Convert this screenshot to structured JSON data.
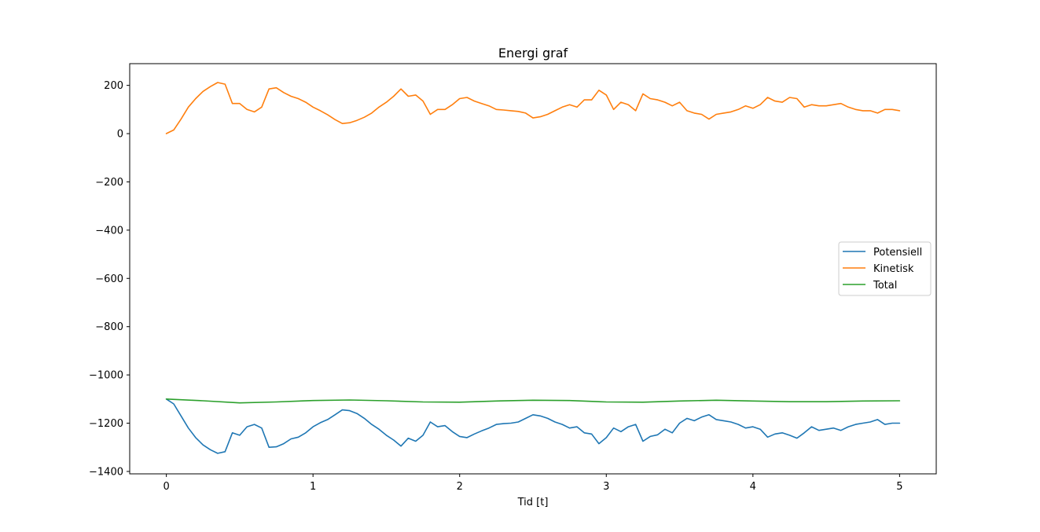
{
  "chart_data": {
    "type": "line",
    "title": "Energi graf",
    "xlabel": "Tid [t]",
    "ylabel": "",
    "xlim": [
      -0.25,
      5.25
    ],
    "ylim": [
      -1410,
      290
    ],
    "xticks": [
      0,
      1,
      2,
      3,
      4,
      5
    ],
    "xtick_labels": [
      "0",
      "1",
      "2",
      "3",
      "4",
      "5"
    ],
    "yticks": [
      -1400,
      -1200,
      -1000,
      -800,
      -600,
      -400,
      -200,
      0,
      200
    ],
    "ytick_labels": [
      "−1400",
      "−1200",
      "−1000",
      "−800",
      "−600",
      "−400",
      "−200",
      "0",
      "200"
    ],
    "grid": false,
    "legend_position": "center-right",
    "series": [
      {
        "name": "Potensiell",
        "color": "#1f77b4",
        "x": [
          0,
          0.05,
          0.1,
          0.15,
          0.2,
          0.25,
          0.3,
          0.35,
          0.4,
          0.45,
          0.5,
          0.55,
          0.6,
          0.65,
          0.7,
          0.75,
          0.8,
          0.85,
          0.9,
          0.95,
          1.0,
          1.05,
          1.1,
          1.15,
          1.2,
          1.25,
          1.3,
          1.35,
          1.4,
          1.45,
          1.5,
          1.55,
          1.6,
          1.65,
          1.7,
          1.75,
          1.8,
          1.85,
          1.9,
          1.95,
          2.0,
          2.05,
          2.1,
          2.15,
          2.2,
          2.25,
          2.3,
          2.35,
          2.4,
          2.45,
          2.5,
          2.55,
          2.6,
          2.65,
          2.7,
          2.75,
          2.8,
          2.85,
          2.9,
          2.95,
          3.0,
          3.05,
          3.1,
          3.15,
          3.2,
          3.25,
          3.3,
          3.35,
          3.4,
          3.45,
          3.5,
          3.55,
          3.6,
          3.65,
          3.7,
          3.75,
          3.8,
          3.85,
          3.9,
          3.95,
          4.0,
          4.05,
          4.1,
          4.15,
          4.2,
          4.25,
          4.3,
          4.35,
          4.4,
          4.45,
          4.5,
          4.55,
          4.6,
          4.65,
          4.7,
          4.75,
          4.8,
          4.85,
          4.9,
          4.95,
          5.0
        ],
        "values": [
          -1100,
          -1120,
          -1170,
          -1220,
          -1260,
          -1290,
          -1310,
          -1325,
          -1318,
          -1240,
          -1250,
          -1215,
          -1205,
          -1220,
          -1300,
          -1298,
          -1285,
          -1265,
          -1258,
          -1240,
          -1215,
          -1198,
          -1185,
          -1165,
          -1145,
          -1148,
          -1160,
          -1180,
          -1205,
          -1225,
          -1250,
          -1270,
          -1295,
          -1262,
          -1275,
          -1250,
          -1195,
          -1215,
          -1210,
          -1235,
          -1255,
          -1260,
          -1245,
          -1232,
          -1220,
          -1205,
          -1202,
          -1200,
          -1195,
          -1180,
          -1165,
          -1170,
          -1180,
          -1195,
          -1205,
          -1220,
          -1215,
          -1240,
          -1245,
          -1285,
          -1260,
          -1220,
          -1235,
          -1215,
          -1205,
          -1275,
          -1255,
          -1248,
          -1225,
          -1240,
          -1200,
          -1180,
          -1190,
          -1175,
          -1165,
          -1185,
          -1190,
          -1195,
          -1205,
          -1220,
          -1215,
          -1225,
          -1258,
          -1245,
          -1240,
          -1250,
          -1262,
          -1240,
          -1215,
          -1230,
          -1225,
          -1220,
          -1230,
          -1215,
          -1205,
          -1200,
          -1195,
          -1185,
          -1205,
          -1200,
          -1200
        ]
      },
      {
        "name": "Kinetisk",
        "color": "#ff7f0e",
        "x": [
          0,
          0.05,
          0.1,
          0.15,
          0.2,
          0.25,
          0.3,
          0.35,
          0.4,
          0.45,
          0.5,
          0.55,
          0.6,
          0.65,
          0.7,
          0.75,
          0.8,
          0.85,
          0.9,
          0.95,
          1.0,
          1.05,
          1.1,
          1.15,
          1.2,
          1.25,
          1.3,
          1.35,
          1.4,
          1.45,
          1.5,
          1.55,
          1.6,
          1.65,
          1.7,
          1.75,
          1.8,
          1.85,
          1.9,
          1.95,
          2.0,
          2.05,
          2.1,
          2.15,
          2.2,
          2.25,
          2.3,
          2.35,
          2.4,
          2.45,
          2.5,
          2.55,
          2.6,
          2.65,
          2.7,
          2.75,
          2.8,
          2.85,
          2.9,
          2.95,
          3.0,
          3.05,
          3.1,
          3.15,
          3.2,
          3.25,
          3.3,
          3.35,
          3.4,
          3.45,
          3.5,
          3.55,
          3.6,
          3.65,
          3.7,
          3.75,
          3.8,
          3.85,
          3.9,
          3.95,
          4.0,
          4.05,
          4.1,
          4.15,
          4.2,
          4.25,
          4.3,
          4.35,
          4.4,
          4.45,
          4.5,
          4.55,
          4.6,
          4.65,
          4.7,
          4.75,
          4.8,
          4.85,
          4.9,
          4.95,
          5.0
        ],
        "values": [
          0,
          15,
          60,
          110,
          145,
          175,
          195,
          212,
          205,
          125,
          125,
          100,
          90,
          110,
          185,
          190,
          170,
          155,
          145,
          130,
          110,
          95,
          78,
          58,
          42,
          45,
          55,
          68,
          85,
          110,
          130,
          155,
          185,
          155,
          160,
          135,
          80,
          100,
          100,
          120,
          145,
          150,
          135,
          125,
          115,
          100,
          98,
          95,
          92,
          85,
          65,
          70,
          80,
          95,
          110,
          120,
          110,
          140,
          140,
          180,
          160,
          100,
          130,
          120,
          95,
          165,
          145,
          140,
          130,
          115,
          130,
          95,
          85,
          80,
          60,
          80,
          85,
          90,
          100,
          115,
          105,
          120,
          150,
          135,
          130,
          150,
          145,
          110,
          120,
          115,
          115,
          120,
          125,
          110,
          100,
          95,
          95,
          85,
          100,
          100,
          95
        ]
      },
      {
        "name": "Total",
        "color": "#2ca02c",
        "x": [
          0,
          0.25,
          0.5,
          0.75,
          1.0,
          1.25,
          1.5,
          1.75,
          2.0,
          2.25,
          2.5,
          2.75,
          3.0,
          3.25,
          3.5,
          3.75,
          4.0,
          4.25,
          4.5,
          4.75,
          5.0
        ],
        "values": [
          -1100,
          -1107,
          -1116,
          -1112,
          -1106,
          -1104,
          -1107,
          -1112,
          -1113,
          -1108,
          -1105,
          -1106,
          -1112,
          -1113,
          -1108,
          -1105,
          -1108,
          -1111,
          -1111,
          -1108,
          -1107
        ]
      }
    ]
  }
}
